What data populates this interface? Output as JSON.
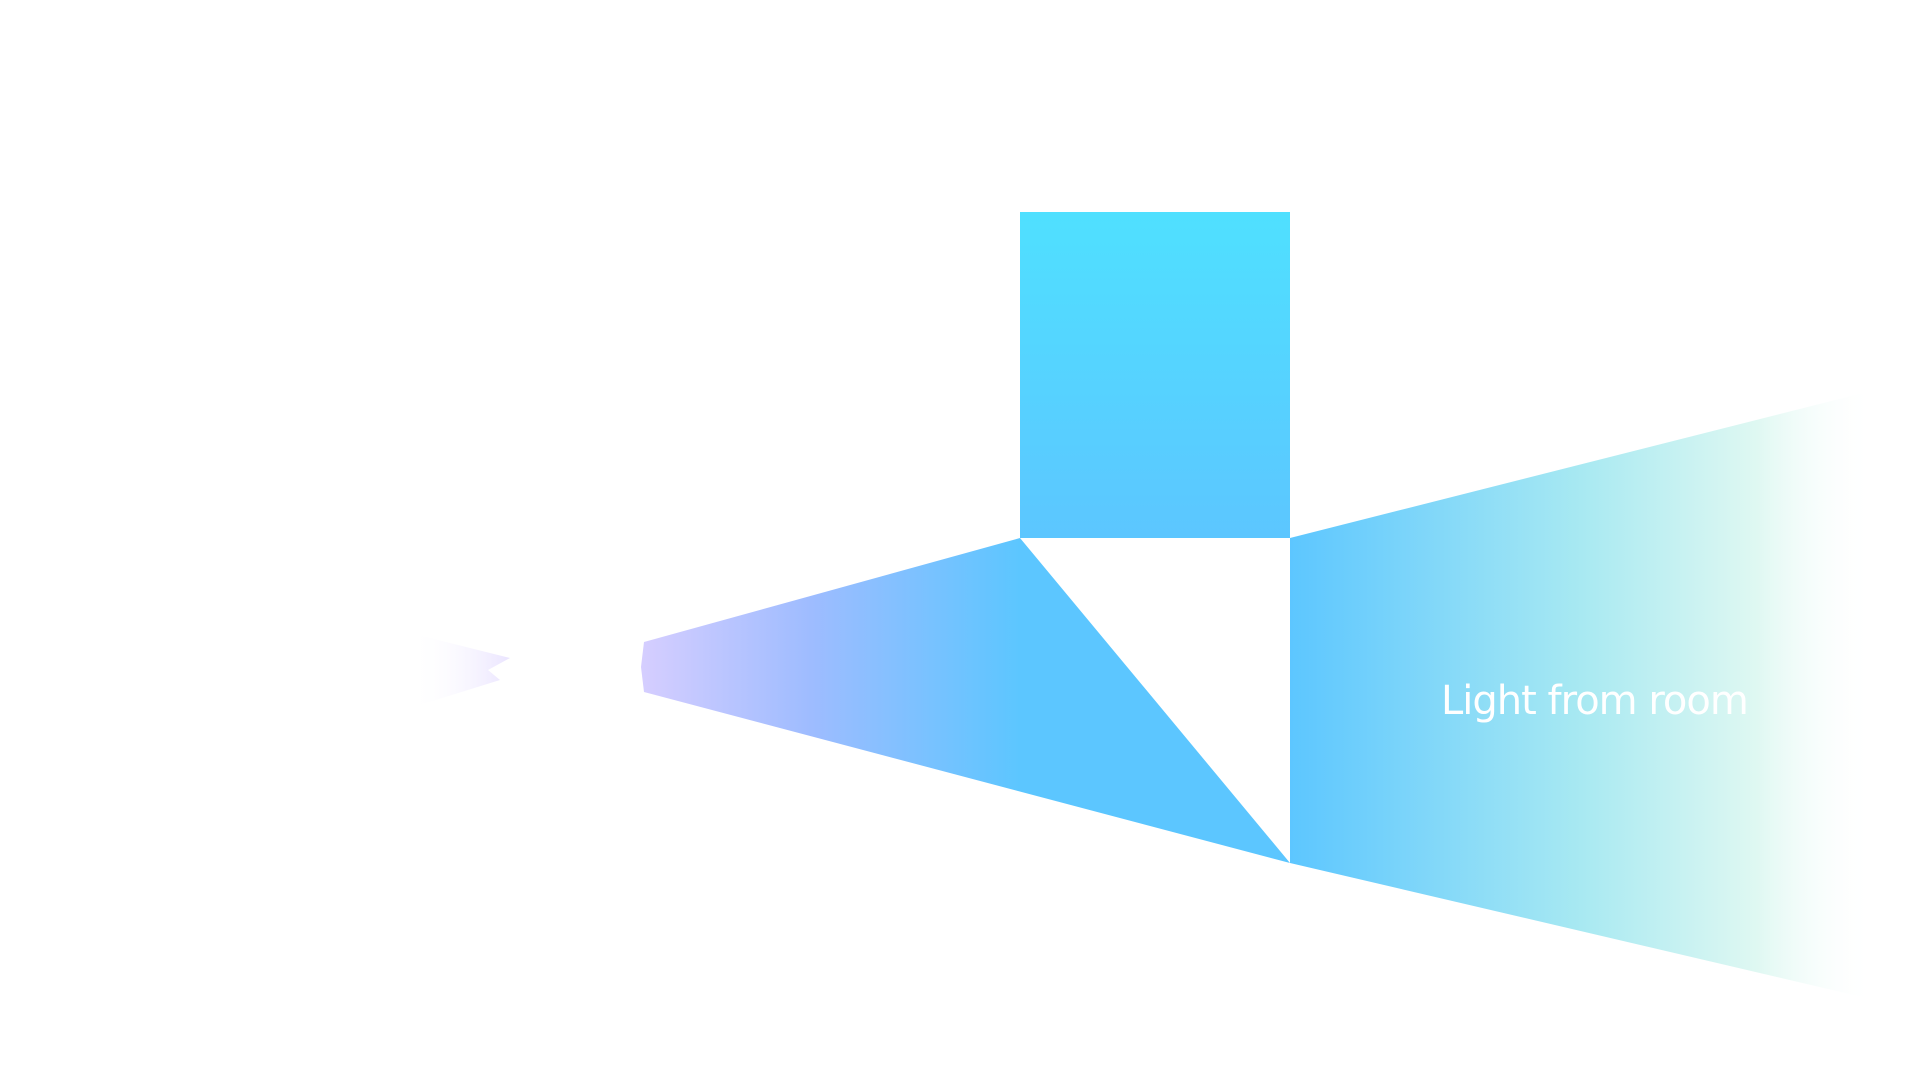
{
  "labels": {
    "room_light": "Light from room"
  },
  "colors": {
    "background": "#ffffff",
    "cyan_top": "#4fe0ff",
    "sky_blue": "#5cc6ff",
    "lavender": "#d6ceff",
    "mint_fade": "#e6fbf5",
    "label_text": "#ffffff"
  }
}
